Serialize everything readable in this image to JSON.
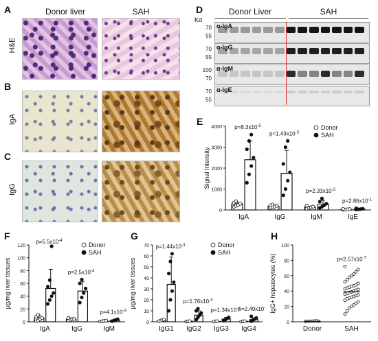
{
  "panels": {
    "A": {
      "label": "A",
      "col_donor": "Donor liver",
      "col_sah": "SAH",
      "row": "H&E"
    },
    "B": {
      "label": "B",
      "row": "IgA"
    },
    "C": {
      "label": "C",
      "row": "IgG"
    },
    "D": {
      "label": "D",
      "kd": "Kd",
      "col_donor": "Donor Liver",
      "col_sah": "SAH",
      "blots": [
        {
          "name": "α-IgA",
          "markers": [
            "70",
            "55"
          ]
        },
        {
          "name": "α-IgG",
          "markers": [
            "70",
            "55"
          ]
        },
        {
          "name": "α-IgM",
          "markers": [
            "100",
            "70"
          ]
        },
        {
          "name": "α-IgE",
          "markers": [
            "70",
            "55"
          ]
        }
      ]
    },
    "E": {
      "label": "E"
    },
    "F": {
      "label": "F"
    },
    "G": {
      "label": "G"
    },
    "H": {
      "label": "H"
    }
  },
  "colors": {
    "sah": "#111111",
    "donor": "#ffffff",
    "divider": "#e03030"
  },
  "chart_data": [
    {
      "id": "E",
      "type": "bar",
      "ylabel": "Signal Intensity",
      "categories": [
        "IgA",
        "IgG",
        "IgM",
        "IgE"
      ],
      "ylim": [
        0,
        4000
      ],
      "yticks": [
        0,
        1000,
        2000,
        3000,
        4000
      ],
      "legend": [
        "Donor",
        "SAH"
      ],
      "pvalues": [
        {
          "base": "p=8.3x10",
          "exp": "-5"
        },
        {
          "base": "p=1.43x10",
          "exp": "-3"
        },
        {
          "base": "p=2.33x10",
          "exp": "-2"
        },
        {
          "base": "p=2.86x10",
          "exp": "-1"
        }
      ],
      "series": [
        {
          "name": "Donor",
          "means": [
            290,
            180,
            130,
            30
          ],
          "sd": [
            90,
            60,
            50,
            15
          ]
        },
        {
          "name": "SAH",
          "means": [
            2400,
            1750,
            280,
            40
          ],
          "sd": [
            900,
            1100,
            180,
            30
          ]
        }
      ],
      "points": {
        "Donor": [
          [
            150,
            200,
            250,
            300,
            350,
            420
          ],
          [
            100,
            130,
            160,
            200,
            220,
            260
          ],
          [
            60,
            100,
            130,
            160,
            200
          ],
          [
            10,
            20,
            30,
            40,
            50
          ]
        ],
        "SAH": [
          [
            1300,
            1700,
            2100,
            2500,
            2900,
            3300,
            3600
          ],
          [
            700,
            1000,
            1400,
            1800,
            2200,
            3000,
            3300
          ],
          [
            100,
            150,
            220,
            300,
            400,
            550
          ],
          [
            20,
            30,
            40,
            60,
            80
          ]
        ]
      }
    },
    {
      "id": "F",
      "type": "bar",
      "ylabel": "μg/mg liver tissues",
      "categories": [
        "IgA",
        "IgG",
        "IgM"
      ],
      "ylim": [
        0,
        120
      ],
      "yticks": [
        0,
        20,
        40,
        60,
        80,
        100,
        120
      ],
      "legend": [
        "Donor",
        "SAH"
      ],
      "pvalues": [
        {
          "base": "p=5.5x10",
          "exp": "-4"
        },
        {
          "base": "p=2.5x10",
          "exp": "-4"
        },
        {
          "base": "p=4.1x10",
          "exp": "-3"
        }
      ],
      "series": [
        {
          "name": "Donor",
          "means": [
            6,
            4,
            1
          ],
          "sd": [
            4,
            2,
            1
          ]
        },
        {
          "name": "SAH",
          "means": [
            52,
            48,
            2
          ],
          "sd": [
            30,
            15,
            1.5
          ]
        }
      ],
      "points": {
        "Donor": [
          [
            1,
            2,
            4,
            6,
            8,
            11
          ],
          [
            2,
            3,
            4,
            5,
            6
          ],
          [
            0.5,
            1,
            1.5,
            2
          ]
        ],
        "SAH": [
          [
            28,
            34,
            40,
            45,
            55,
            65,
            118
          ],
          [
            30,
            38,
            45,
            52,
            60,
            66
          ],
          [
            1,
            2,
            3,
            4
          ]
        ]
      }
    },
    {
      "id": "G",
      "type": "bar",
      "ylabel": "μg/mg liver tissues",
      "categories": [
        "IgG1",
        "IgG2",
        "IgG3",
        "IgG4"
      ],
      "ylim": [
        0,
        70
      ],
      "yticks": [
        0,
        10,
        20,
        30,
        40,
        50,
        60,
        70
      ],
      "legend": [
        "Donor",
        "SAH"
      ],
      "pvalues": [
        {
          "base": "p=1.44x10",
          "exp": "-3"
        },
        {
          "base": "p=1.76x10",
          "exp": "-3"
        },
        {
          "base": "p=1.34x10",
          "exp": "-3"
        },
        {
          "base": "p=2.49x10",
          "exp": "-2"
        }
      ],
      "series": [
        {
          "name": "Donor",
          "means": [
            1,
            0.5,
            0.4,
            0.4
          ],
          "sd": [
            0.5,
            0.3,
            0.2,
            0.2
          ]
        },
        {
          "name": "SAH",
          "means": [
            34,
            6,
            2.5,
            2
          ],
          "sd": [
            25,
            4,
            1.5,
            1.5
          ]
        }
      ],
      "points": {
        "Donor": [
          [
            0.5,
            1,
            1.5,
            2
          ],
          [
            0.2,
            0.4,
            0.6
          ],
          [
            0.2,
            0.4,
            0.6
          ],
          [
            0.2,
            0.4,
            0.6
          ]
        ],
        "SAH": [
          [
            10,
            20,
            28,
            36,
            44,
            55,
            62
          ],
          [
            2,
            4,
            6,
            8,
            10,
            12
          ],
          [
            1,
            2,
            3,
            4
          ],
          [
            0.5,
            1.5,
            2.5,
            3.5,
            5
          ]
        ]
      }
    },
    {
      "id": "H",
      "type": "scatter",
      "ylabel": "IgG+ hepatocytes (%)",
      "categories": [
        "Donor",
        "SAH"
      ],
      "ylim": [
        0,
        100
      ],
      "yticks": [
        0,
        20,
        40,
        60,
        80,
        100
      ],
      "pvalues": [
        {
          "base": "p=2.57x10",
          "exp": "-7"
        }
      ],
      "means": [
        0.5,
        39
      ],
      "points": {
        "Donor": [
          0.3,
          0.5,
          0.6,
          0.8,
          1,
          1.2,
          0.4,
          0.7
        ],
        "SAH": [
          10,
          14,
          18,
          20,
          22,
          24,
          26,
          28,
          30,
          31,
          32,
          33,
          34,
          35,
          36,
          37,
          38,
          39,
          40,
          41,
          42,
          43,
          44,
          45,
          46,
          47,
          48,
          50,
          52,
          55,
          58,
          60,
          62,
          65,
          68,
          72
        ]
      }
    }
  ]
}
